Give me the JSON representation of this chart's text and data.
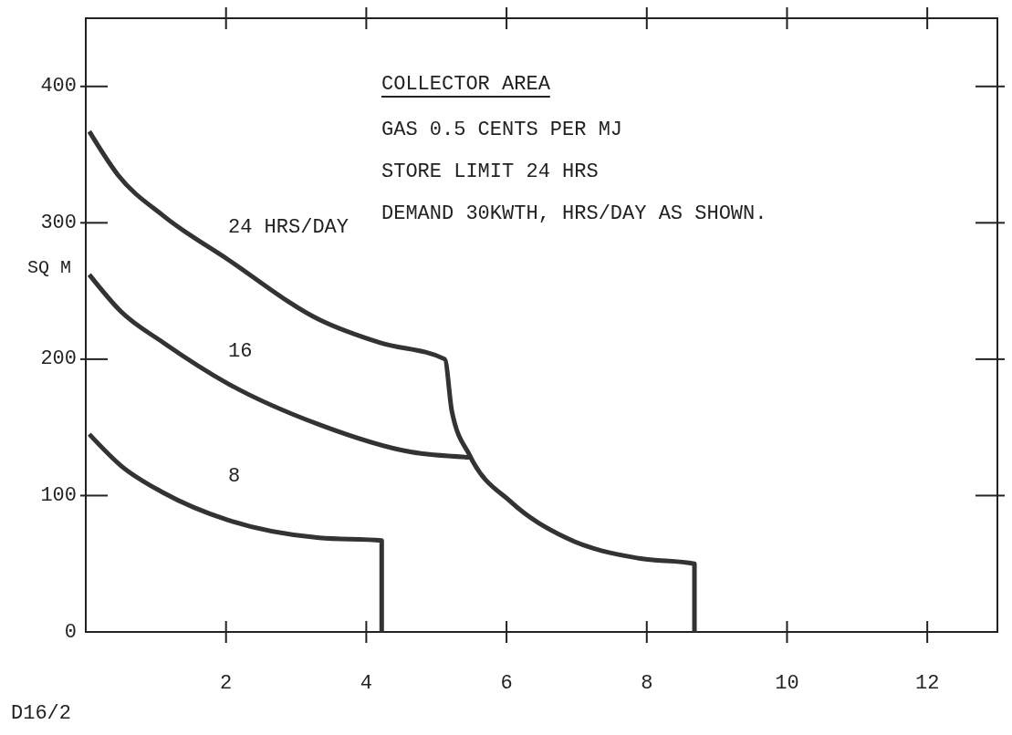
{
  "chart_data": {
    "type": "line",
    "title": "COLLECTOR AREA",
    "subtitle": "GAS 0.5 CENTS PER MJ\nSTORE LIMIT 24 HRS\nDEMAND 30KWTH, HRS/DAY AS SHOWN.",
    "ylabel": "SQ M",
    "annotations": [
      "D16/2"
    ],
    "xlim": [
      0,
      13
    ],
    "ylim": [
      0,
      450
    ],
    "xticks": [
      2,
      4,
      6,
      8,
      10,
      12
    ],
    "yticks": [
      0,
      100,
      200,
      300,
      400
    ],
    "grid": false,
    "legend": false,
    "marker": "none",
    "line_style": "solid",
    "series": [
      {
        "name": "24 HRS/DAY",
        "color": "#333333",
        "x": [
          0.05,
          0.46,
          1.11,
          2.03,
          3.33,
          4.2,
          5.12,
          5.22,
          5.48,
          6.07,
          6.85,
          7.89,
          8.68,
          8.68
        ],
        "values": [
          367,
          335,
          305,
          273,
          229,
          212,
          200,
          162,
          129,
          95,
          69,
          54,
          50,
          0
        ]
      },
      {
        "name": "16",
        "color": "#333333",
        "x": [
          0.05,
          0.5,
          1.11,
          2.03,
          3.33,
          4.63,
          5.48
        ],
        "values": [
          262,
          235,
          212,
          182,
          152,
          132,
          128
        ]
      },
      {
        "name": "8",
        "color": "#333333",
        "x": [
          0.05,
          0.5,
          1.11,
          2.03,
          3.33,
          4.22,
          4.22
        ],
        "values": [
          145,
          122,
          102,
          82,
          69,
          67,
          0
        ]
      }
    ]
  }
}
